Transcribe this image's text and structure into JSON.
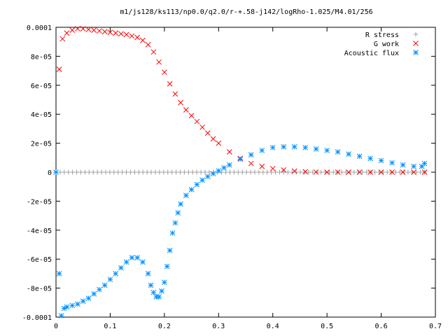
{
  "chart_data": {
    "type": "scatter",
    "title": "m1/js128/ks113/np0.0/q2.0/r-+.58-j142/logRho-1.025/M4.01/256",
    "xlim": [
      0,
      0.7
    ],
    "ylim": [
      -0.0001,
      0.0001
    ],
    "x_ticks": [
      "0",
      "0.1",
      "0.2",
      "0.3",
      "0.4",
      "0.5",
      "0.6",
      "0.7"
    ],
    "y_ticks": [
      "-0.0001",
      "-8e-05",
      "-6e-05",
      "-4e-05",
      "-2e-05",
      "0",
      "2e-05",
      "4e-05",
      "6e-05",
      "8e-05",
      "0.0001"
    ],
    "x_tick_values": [
      0,
      0.1,
      0.2,
      0.3,
      0.4,
      0.5,
      0.6,
      0.7
    ],
    "y_tick_values": [
      -0.0001,
      -8e-05,
      -6e-05,
      -4e-05,
      -2e-05,
      0,
      2e-05,
      4e-05,
      6e-05,
      8e-05,
      0.0001
    ],
    "grid": false,
    "legend_position": "top-right",
    "series": [
      {
        "name": "R stress",
        "marker": "plus",
        "color": "#a0a0a0",
        "x": [
          0.0,
          0.68
        ],
        "y": [
          0,
          0
        ],
        "sampling": "uniform 90 points along zero line"
      },
      {
        "name": "G work",
        "marker": "cross",
        "color": "#ff0000",
        "x": [
          0.006,
          0.012,
          0.02,
          0.03,
          0.04,
          0.05,
          0.06,
          0.07,
          0.08,
          0.09,
          0.1,
          0.11,
          0.12,
          0.13,
          0.14,
          0.15,
          0.16,
          0.17,
          0.18,
          0.19,
          0.2,
          0.21,
          0.22,
          0.23,
          0.24,
          0.25,
          0.26,
          0.27,
          0.28,
          0.29,
          0.3,
          0.32,
          0.34,
          0.36,
          0.38,
          0.4,
          0.42,
          0.44,
          0.46,
          0.48,
          0.5,
          0.52,
          0.54,
          0.56,
          0.58,
          0.6,
          0.62,
          0.64,
          0.66,
          0.68
        ],
        "y": [
          7.1e-05,
          9.2e-05,
          9.6e-05,
          9.8e-05,
          9.9e-05,
          9.9e-05,
          9.85e-05,
          9.8e-05,
          9.75e-05,
          9.7e-05,
          9.65e-05,
          9.6e-05,
          9.55e-05,
          9.5e-05,
          9.4e-05,
          9.3e-05,
          9.1e-05,
          8.8e-05,
          8.3e-05,
          7.6e-05,
          6.9e-05,
          6.1e-05,
          5.4e-05,
          4.8e-05,
          4.3e-05,
          3.9e-05,
          3.5e-05,
          3.1e-05,
          2.7e-05,
          2.3e-05,
          2e-05,
          1.4e-05,
          9.5e-06,
          6e-06,
          4e-06,
          2.5e-06,
          1.5e-06,
          8e-07,
          3e-07,
          1e-07,
          0,
          0,
          0,
          0,
          0,
          0,
          0,
          0,
          0,
          0
        ]
      },
      {
        "name": "Acoustic flux",
        "marker": "star",
        "color": "#0090ff",
        "x": [
          0.0,
          0.006,
          0.01,
          0.015,
          0.02,
          0.03,
          0.04,
          0.05,
          0.06,
          0.07,
          0.08,
          0.09,
          0.1,
          0.11,
          0.12,
          0.13,
          0.14,
          0.15,
          0.16,
          0.17,
          0.175,
          0.18,
          0.185,
          0.19,
          0.195,
          0.2,
          0.205,
          0.21,
          0.215,
          0.22,
          0.225,
          0.23,
          0.24,
          0.25,
          0.26,
          0.27,
          0.28,
          0.29,
          0.3,
          0.31,
          0.32,
          0.34,
          0.36,
          0.38,
          0.4,
          0.42,
          0.44,
          0.46,
          0.48,
          0.5,
          0.52,
          0.54,
          0.56,
          0.58,
          0.6,
          0.62,
          0.64,
          0.66,
          0.675,
          0.68
        ],
        "y": [
          0,
          -7e-05,
          -9.9e-05,
          -9.4e-05,
          -9.3e-05,
          -9.2e-05,
          -9.1e-05,
          -8.9e-05,
          -8.7e-05,
          -8.4e-05,
          -8.1e-05,
          -7.8e-05,
          -7.4e-05,
          -7e-05,
          -6.6e-05,
          -6.2e-05,
          -5.9e-05,
          -5.9e-05,
          -6.2e-05,
          -7e-05,
          -7.8e-05,
          -8.3e-05,
          -8.6e-05,
          -8.6e-05,
          -8.2e-05,
          -7.6e-05,
          -6.5e-05,
          -5.4e-05,
          -4.2e-05,
          -3.5e-05,
          -2.8e-05,
          -2.2e-05,
          -1.6e-05,
          -1.2e-05,
          -8.5e-06,
          -5.5e-06,
          -3e-06,
          -1e-06,
          1e-06,
          3e-06,
          5e-06,
          9e-06,
          1.2e-05,
          1.5e-05,
          1.7e-05,
          1.75e-05,
          1.75e-05,
          1.7e-05,
          1.6e-05,
          1.5e-05,
          1.4e-05,
          1.25e-05,
          1.1e-05,
          9.5e-06,
          8e-06,
          6.5e-06,
          5e-06,
          4e-06,
          4e-06,
          6e-06
        ]
      }
    ]
  }
}
